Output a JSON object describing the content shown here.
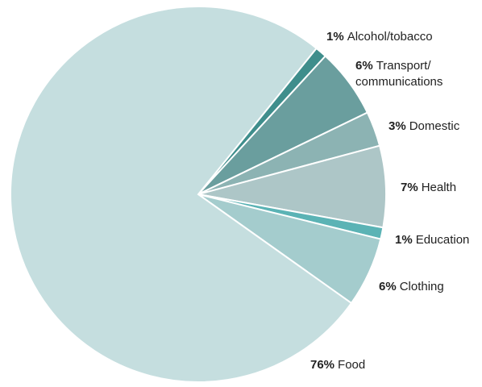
{
  "chart_data": {
    "type": "pie",
    "categories": [
      "Alcohol/tobacco",
      "Transport/ communications",
      "Domestic",
      "Health",
      "Education",
      "Clothing",
      "Food"
    ],
    "values": [
      1,
      6,
      3,
      7,
      1,
      6,
      76
    ],
    "value_labels": [
      "1%",
      "6%",
      "3%",
      "7%",
      "1%",
      "6%",
      "76%"
    ],
    "colors": [
      "#3f8e8c",
      "#6a9e9e",
      "#8cb3b3",
      "#adc6c7",
      "#5bb3b5",
      "#a4cccd",
      "#c5dedf"
    ]
  }
}
